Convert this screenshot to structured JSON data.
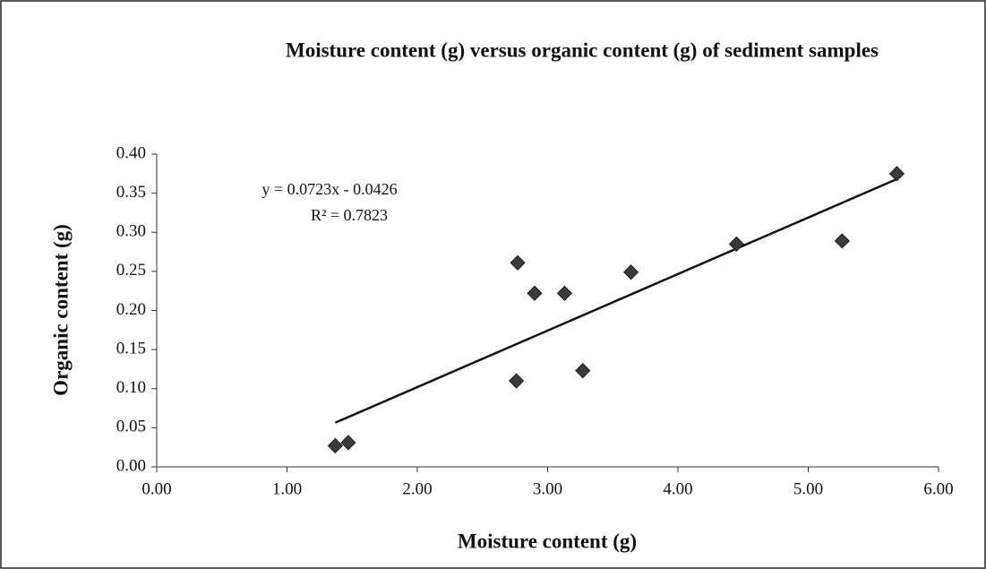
{
  "chart_data": {
    "type": "scatter",
    "title": "Moisture content (g) versus organic content (g) of sediment samples",
    "x_label": "Moisture content (g)",
    "y_label": "Organic content (g)",
    "x": [
      1.37,
      1.47,
      2.76,
      2.77,
      2.9,
      3.13,
      3.27,
      3.64,
      4.45,
      5.26,
      5.68
    ],
    "values": [
      0.027,
      0.031,
      0.11,
      0.261,
      0.222,
      0.222,
      0.123,
      0.249,
      0.285,
      0.289,
      0.375
    ],
    "color": "#3a3a3a",
    "trendline": {
      "equation": "y = 0.0723x  - 0.0426",
      "r2": "R² = 0.7823",
      "slope": 0.0723,
      "intercept": -0.0426,
      "color": "#111111"
    },
    "xlim": [
      0,
      6
    ],
    "xticks": [
      {
        "value": 0,
        "label": "0.00"
      },
      {
        "value": 1,
        "label": "1.00"
      },
      {
        "value": 2,
        "label": "2.00"
      },
      {
        "value": 3,
        "label": "3.00"
      },
      {
        "value": 4,
        "label": "4.00"
      },
      {
        "value": 5,
        "label": "5.00"
      },
      {
        "value": 6,
        "label": "6.00"
      }
    ],
    "ylim": [
      0,
      0.4
    ],
    "yticks": [
      {
        "value": 0,
        "label": "0.00"
      },
      {
        "value": 0.05,
        "label": "0.05"
      },
      {
        "value": 0.1,
        "label": "0.10"
      },
      {
        "value": 0.15,
        "label": "0.15"
      },
      {
        "value": 0.2,
        "label": "0.20"
      },
      {
        "value": 0.25,
        "label": "0.25"
      },
      {
        "value": 0.3,
        "label": "0.30"
      },
      {
        "value": 0.35,
        "label": "0.35"
      },
      {
        "value": 0.4,
        "label": "0.40"
      }
    ],
    "grid": false
  }
}
